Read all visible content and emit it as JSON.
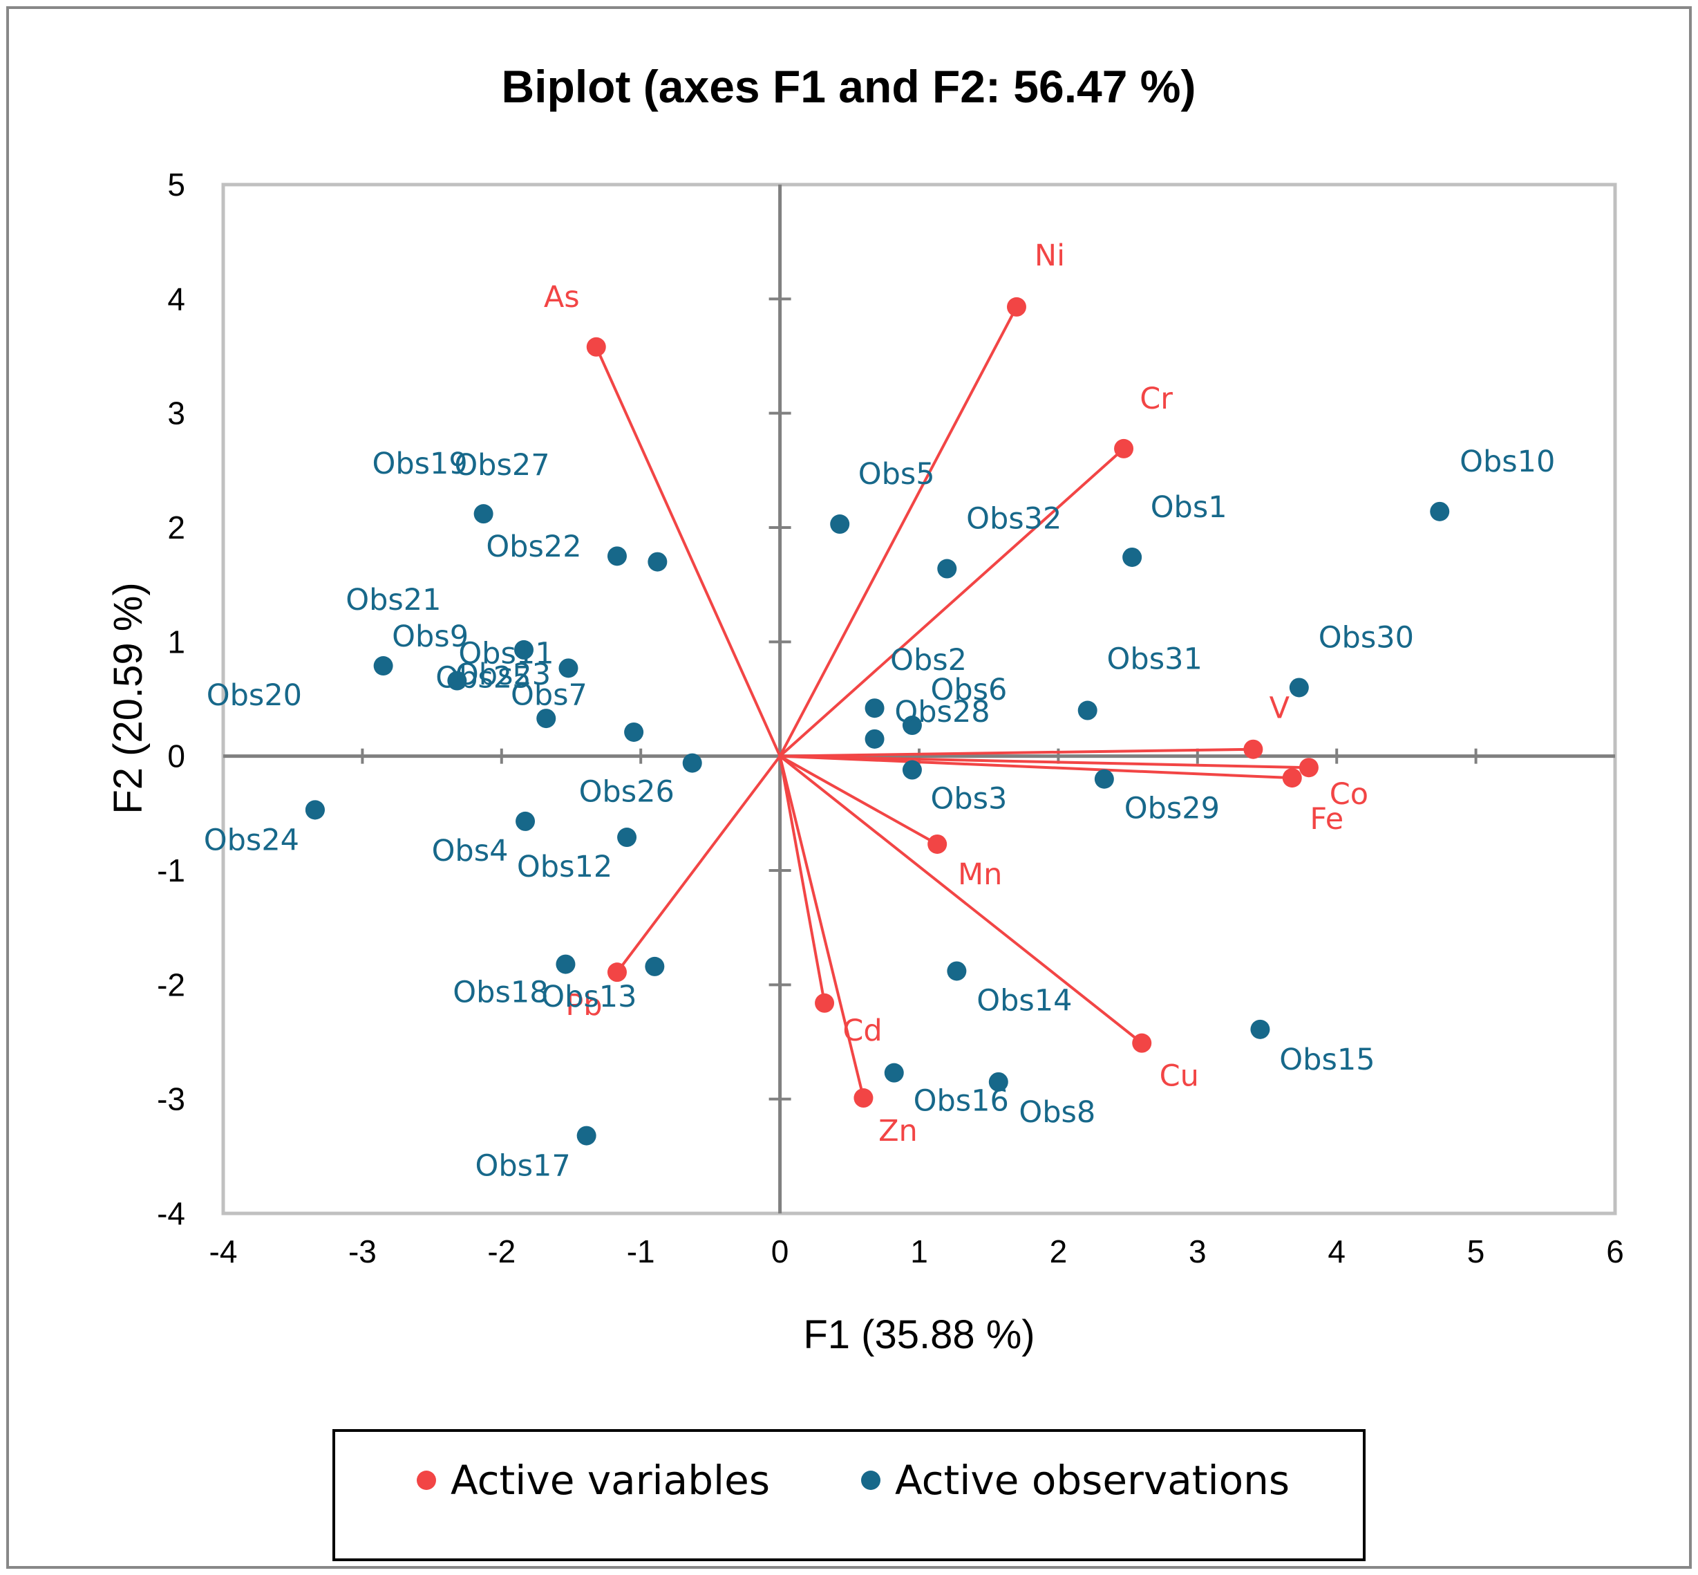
{
  "chart_data": {
    "type": "scatter",
    "title": "Biplot (axes F1 and F2: 56.47 %)",
    "xlabel": "F1 (35.88 %)",
    "ylabel": "F2 (20.59 %)",
    "xlim": [
      -4,
      6
    ],
    "ylim": [
      -4,
      5
    ],
    "x_ticks": [
      "-4",
      "-3",
      "-2",
      "-1",
      "0",
      "1",
      "2",
      "3",
      "4",
      "5",
      "6"
    ],
    "y_ticks": [
      "5",
      "4",
      "3",
      "2",
      "1",
      "0",
      "-1",
      "-2",
      "-3",
      "-4"
    ],
    "colors": {
      "variables": "#f24545",
      "observations": "#17688a",
      "axes": "#808080",
      "frame": "#c0c0c0"
    },
    "legend": {
      "position": "bottom",
      "items": [
        {
          "label": "Active variables",
          "series": "variables"
        },
        {
          "label": "Active observations",
          "series": "observations"
        }
      ]
    },
    "series": [
      {
        "name": "Active variables",
        "points": [
          {
            "label": "As",
            "x": -1.32,
            "y": 3.58
          },
          {
            "label": "Ni",
            "x": 1.7,
            "y": 3.93
          },
          {
            "label": "Cr",
            "x": 2.47,
            "y": 2.69
          },
          {
            "label": "V",
            "x": 3.4,
            "y": 0.06
          },
          {
            "label": "Co",
            "x": 3.8,
            "y": -0.1
          },
          {
            "label": "Fe",
            "x": 3.68,
            "y": -0.19
          },
          {
            "label": "Mn",
            "x": 1.13,
            "y": -0.77
          },
          {
            "label": "Cu",
            "x": 2.6,
            "y": -2.51
          },
          {
            "label": "Cd",
            "x": 0.32,
            "y": -2.16
          },
          {
            "label": "Zn",
            "x": 0.6,
            "y": -2.99
          },
          {
            "label": "Pb",
            "x": -1.17,
            "y": -1.89
          }
        ]
      },
      {
        "name": "Active observations",
        "points": [
          {
            "label": "Obs1",
            "x": 2.53,
            "y": 1.74
          },
          {
            "label": "Obs2",
            "x": 0.68,
            "y": 0.42
          },
          {
            "label": "Obs3",
            "x": 0.95,
            "y": -0.12
          },
          {
            "label": "Obs4",
            "x": -1.83,
            "y": -0.57
          },
          {
            "label": "Obs5",
            "x": 0.43,
            "y": 2.03
          },
          {
            "label": "Obs6",
            "x": 0.95,
            "y": 0.27
          },
          {
            "label": "Obs7",
            "x": -1.52,
            "y": 0.77
          },
          {
            "label": "Obs8",
            "x": 1.57,
            "y": -2.85
          },
          {
            "label": "Obs9",
            "x": -2.85,
            "y": 0.79
          },
          {
            "label": "Obs10",
            "x": 4.74,
            "y": 2.14
          },
          {
            "label": "Obs11",
            "x": -1.05,
            "y": 0.21
          },
          {
            "label": "Obs12",
            "x": -1.1,
            "y": -0.71
          },
          {
            "label": "Obs13",
            "x": -0.9,
            "y": -1.84
          },
          {
            "label": "Obs14",
            "x": 1.27,
            "y": -1.88
          },
          {
            "label": "Obs15",
            "x": 3.45,
            "y": -2.39
          },
          {
            "label": "Obs16",
            "x": 0.82,
            "y": -2.77
          },
          {
            "label": "Obs17",
            "x": -1.39,
            "y": -3.32
          },
          {
            "label": "Obs18",
            "x": -1.54,
            "y": -1.82
          },
          {
            "label": "Obs19",
            "x": -2.13,
            "y": 2.12
          },
          {
            "label": "Obs20",
            "x": -3.34,
            "y": -0.47
          },
          {
            "label": "Obs21",
            "x": -1.84,
            "y": 0.93
          },
          {
            "label": "Obs22",
            "x": -1.17,
            "y": 1.75
          },
          {
            "label": "Obs23",
            "x": -1.68,
            "y": 0.33
          },
          {
            "label": "Obs24",
            "x": -3.34,
            "y": -0.47
          },
          {
            "label": "Obs25",
            "x": -2.32,
            "y": 0.66
          },
          {
            "label": "Obs26",
            "x": -0.63,
            "y": -0.06
          },
          {
            "label": "Obs27",
            "x": -0.88,
            "y": 1.7
          },
          {
            "label": "Obs28",
            "x": 0.68,
            "y": 0.15
          },
          {
            "label": "Obs29",
            "x": 2.33,
            "y": -0.2
          },
          {
            "label": "Obs30",
            "x": 3.73,
            "y": 0.6
          },
          {
            "label": "Obs31",
            "x": 2.21,
            "y": 0.4
          },
          {
            "label": "Obs32",
            "x": 1.2,
            "y": 1.64
          }
        ]
      }
    ]
  }
}
